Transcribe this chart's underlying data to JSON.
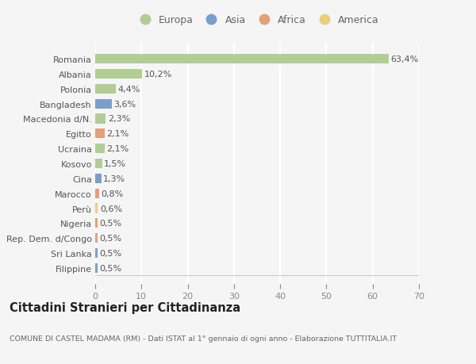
{
  "categories": [
    "Romania",
    "Albania",
    "Polonia",
    "Bangladesh",
    "Macedonia d/N.",
    "Egitto",
    "Ucraina",
    "Kosovo",
    "Cina",
    "Marocco",
    "Perù",
    "Nigeria",
    "Rep. Dem. d/Congo",
    "Sri Lanka",
    "Filippine"
  ],
  "values": [
    63.4,
    10.2,
    4.4,
    3.6,
    2.3,
    2.1,
    2.1,
    1.5,
    1.3,
    0.8,
    0.6,
    0.5,
    0.5,
    0.5,
    0.5
  ],
  "labels": [
    "63,4%",
    "10,2%",
    "4,4%",
    "3,6%",
    "2,3%",
    "2,1%",
    "2,1%",
    "1,5%",
    "1,3%",
    "0,8%",
    "0,6%",
    "0,5%",
    "0,5%",
    "0,5%",
    "0,5%"
  ],
  "continent": [
    "Europa",
    "Europa",
    "Europa",
    "Asia",
    "Europa",
    "Africa",
    "Europa",
    "Europa",
    "Asia",
    "Africa",
    "America",
    "Africa",
    "Africa",
    "Asia",
    "Asia"
  ],
  "colors": {
    "Europa": "#a8c888",
    "Asia": "#6b93c4",
    "Africa": "#e0956a",
    "America": "#e8c96a"
  },
  "legend_order": [
    "Europa",
    "Asia",
    "Africa",
    "America"
  ],
  "background_color": "#f5f5f5",
  "title": "Cittadini Stranieri per Cittadinanza",
  "subtitle": "COMUNE DI CASTEL MADAMA (RM) - Dati ISTAT al 1° gennaio di ogni anno - Elaborazione TUTTITALIA.IT",
  "xlim": [
    0,
    70
  ],
  "xticks": [
    0,
    10,
    20,
    30,
    40,
    50,
    60,
    70
  ],
  "grid_color": "#ffffff",
  "bar_height": 0.65,
  "text_fontsize": 8,
  "label_fontsize": 8,
  "title_fontsize": 10.5,
  "subtitle_fontsize": 6.8
}
